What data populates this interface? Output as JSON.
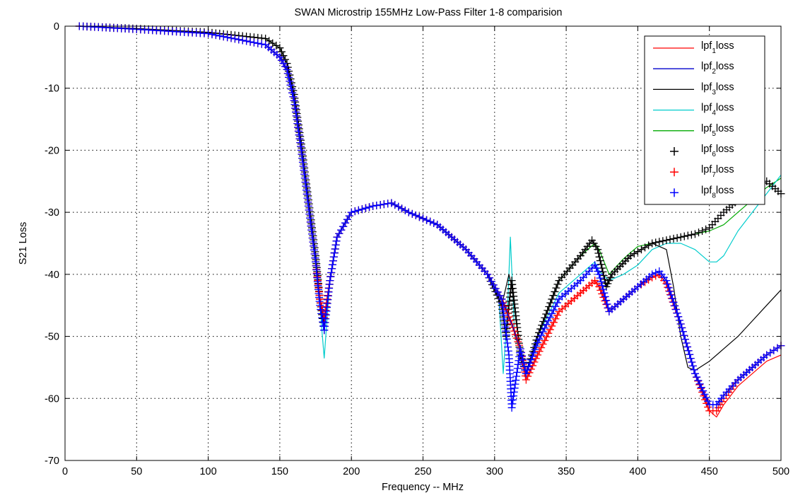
{
  "chart_data": {
    "type": "line",
    "title": "SWAN Microstrip 155MHz Low-Pass Filter 1-8 comparision",
    "xlabel": "Frequency -- MHz",
    "ylabel": "S21 Loss",
    "xlim": [
      0,
      500
    ],
    "ylim": [
      -70,
      0
    ],
    "xticks": [
      0,
      50,
      100,
      150,
      200,
      250,
      300,
      350,
      400,
      450,
      500
    ],
    "yticks": [
      0,
      -10,
      -20,
      -30,
      -40,
      -50,
      -60,
      -70
    ],
    "grid": true,
    "legend_position": "top-right",
    "series": [
      {
        "name": "lpf1loss",
        "base": "lpf",
        "sub": "1",
        "tail": "loss",
        "style": "line",
        "color": "#ff0000",
        "x": [
          10,
          50,
          100,
          140,
          150,
          155,
          160,
          165,
          170,
          175,
          178,
          181,
          185,
          190,
          200,
          215,
          228,
          240,
          260,
          280,
          295,
          305,
          312,
          318,
          322,
          330,
          345,
          360,
          370,
          373,
          380,
          390,
          400,
          410,
          415,
          420,
          430,
          440,
          450,
          455,
          460,
          470,
          480,
          490,
          500
        ],
        "y": [
          0,
          -0.5,
          -1.2,
          -3,
          -5,
          -7,
          -12,
          -20,
          -29,
          -38,
          -44,
          -47,
          -41,
          -34,
          -30,
          -29,
          -28.5,
          -30,
          -32,
          -36,
          -40,
          -44,
          -48,
          -52,
          -57,
          -53,
          -46,
          -43,
          -41,
          -42,
          -46,
          -44,
          -42,
          -40.5,
          -40,
          -41.5,
          -48,
          -56,
          -62,
          -63,
          -61,
          -58,
          -56,
          -54,
          -53
        ]
      },
      {
        "name": "lpf2loss",
        "base": "lpf",
        "sub": "2",
        "tail": "loss",
        "style": "line",
        "color": "#0000cc",
        "x": [
          10,
          50,
          100,
          140,
          150,
          155,
          160,
          165,
          170,
          175,
          178,
          181,
          185,
          190,
          200,
          215,
          228,
          240,
          260,
          280,
          295,
          305,
          312,
          318,
          322,
          330,
          345,
          360,
          370,
          373,
          380,
          390,
          400,
          410,
          415,
          420,
          430,
          440,
          450,
          455,
          460,
          470,
          480,
          490,
          500
        ],
        "y": [
          0,
          -0.5,
          -1.2,
          -3,
          -5,
          -7,
          -12,
          -20,
          -29,
          -38,
          -45,
          -49,
          -41,
          -34,
          -30,
          -29,
          -28.5,
          -30,
          -32,
          -36,
          -40,
          -44,
          -48,
          -52,
          -56,
          -51,
          -44,
          -41,
          -38.5,
          -40,
          -46,
          -44,
          -42,
          -40,
          -39.5,
          -41,
          -48,
          -56,
          -61,
          -61,
          -59.5,
          -57,
          -55,
          -53,
          -51.5
        ]
      },
      {
        "name": "lpf3loss",
        "base": "lpf",
        "sub": "3",
        "tail": "loss",
        "style": "line",
        "color": "#000000",
        "x": [
          10,
          50,
          100,
          140,
          150,
          155,
          160,
          165,
          170,
          175,
          178,
          181,
          185,
          190,
          200,
          215,
          228,
          240,
          260,
          280,
          295,
          305,
          310,
          312,
          318,
          322,
          330,
          345,
          360,
          368,
          372,
          378,
          382,
          395,
          410,
          420,
          425,
          430,
          435,
          440,
          450,
          460,
          470,
          480,
          490,
          500
        ],
        "y": [
          0,
          -0.4,
          -1,
          -2,
          -3.5,
          -6,
          -11,
          -19,
          -28,
          -37,
          -44,
          -48,
          -41,
          -34,
          -30,
          -29,
          -28.5,
          -30,
          -32,
          -36,
          -40,
          -45,
          -40,
          -42,
          -53,
          -56,
          -50,
          -41,
          -37,
          -34.5,
          -36,
          -42,
          -40,
          -37,
          -35,
          -36,
          -42,
          -50,
          -55,
          -55.5,
          -54,
          -52,
          -50,
          -47.5,
          -45,
          -42.5
        ]
      },
      {
        "name": "lpf4loss",
        "base": "lpf",
        "sub": "4",
        "tail": "loss",
        "style": "line",
        "color": "#00cccc",
        "x": [
          10,
          50,
          100,
          140,
          150,
          155,
          160,
          165,
          170,
          175,
          178,
          181,
          185,
          190,
          200,
          215,
          228,
          240,
          260,
          280,
          295,
          303,
          306,
          309,
          311,
          314,
          318,
          322,
          330,
          345,
          360,
          370,
          373,
          380,
          390,
          400,
          410,
          415,
          420,
          430,
          440,
          450,
          455,
          460,
          470,
          480,
          490,
          500
        ],
        "y": [
          0,
          -0.5,
          -1.2,
          -3,
          -5,
          -7,
          -12,
          -20,
          -29,
          -38,
          -45,
          -53.5,
          -41,
          -34,
          -30,
          -29,
          -28.5,
          -30,
          -32,
          -36,
          -40,
          -44,
          -56,
          -46,
          -34,
          -50,
          -52,
          -56,
          -50,
          -43,
          -40,
          -38,
          -39.5,
          -41,
          -40,
          -38.5,
          -36,
          -35.5,
          -35,
          -35,
          -36,
          -38,
          -38,
          -37,
          -33,
          -30,
          -27,
          -24
        ]
      },
      {
        "name": "lpf5loss",
        "base": "lpf",
        "sub": "5",
        "tail": "loss",
        "style": "line",
        "color": "#00aa00",
        "x": [
          10,
          50,
          100,
          140,
          150,
          155,
          160,
          165,
          170,
          175,
          178,
          181,
          185,
          190,
          200,
          215,
          228,
          240,
          260,
          280,
          295,
          305,
          312,
          318,
          322,
          330,
          345,
          360,
          370,
          373,
          380,
          390,
          400,
          410,
          420,
          430,
          440,
          450,
          460,
          470,
          480,
          490,
          500
        ],
        "y": [
          0,
          -0.4,
          -1,
          -2,
          -3.5,
          -6,
          -11,
          -19,
          -28,
          -37,
          -44,
          -48,
          -41,
          -34,
          -30,
          -29,
          -28.5,
          -30,
          -32,
          -36,
          -40,
          -44,
          -48,
          -52,
          -56,
          -50,
          -41,
          -37,
          -35,
          -36,
          -40,
          -37.5,
          -35.5,
          -35,
          -34.5,
          -34,
          -33.5,
          -33,
          -32,
          -30,
          -28,
          -26,
          -24.5
        ]
      },
      {
        "name": "lpf6loss",
        "base": "lpf",
        "sub": "6",
        "tail": "loss",
        "style": "marker",
        "color": "#000000",
        "x": [
          10,
          50,
          100,
          140,
          150,
          155,
          160,
          165,
          170,
          175,
          178,
          181,
          185,
          190,
          200,
          215,
          228,
          240,
          260,
          280,
          295,
          305,
          308,
          310,
          312,
          318,
          322,
          330,
          345,
          360,
          368,
          372,
          378,
          382,
          395,
          410,
          420,
          440,
          450,
          460,
          470,
          480,
          490,
          500
        ],
        "y": [
          0,
          -0.4,
          -1,
          -2,
          -3.5,
          -6,
          -11,
          -19,
          -28,
          -37,
          -44,
          -49,
          -41,
          -34,
          -30,
          -29,
          -28.5,
          -30,
          -32,
          -36,
          -40,
          -45,
          -50,
          -45,
          -41,
          -53,
          -56,
          -50,
          -41,
          -37,
          -34.5,
          -36,
          -42,
          -40,
          -37,
          -35,
          -34.5,
          -33.5,
          -32.5,
          -30,
          -28,
          -26,
          -25,
          -27
        ]
      },
      {
        "name": "lpf7loss",
        "base": "lpf",
        "sub": "7",
        "tail": "loss",
        "style": "marker",
        "color": "#ff0000",
        "x": [
          10,
          50,
          100,
          140,
          150,
          155,
          160,
          165,
          170,
          175,
          178,
          181,
          185,
          190,
          200,
          215,
          228,
          240,
          260,
          280,
          295,
          305,
          312,
          318,
          322,
          330,
          345,
          360,
          370,
          373,
          380,
          390,
          400,
          410,
          415,
          420,
          430,
          440,
          450,
          455,
          460,
          470,
          480,
          490,
          500
        ],
        "y": [
          0,
          -0.5,
          -1.2,
          -3,
          -5,
          -7,
          -12,
          -20,
          -29,
          -38,
          -44,
          -47,
          -41,
          -34,
          -30,
          -29,
          -28.5,
          -30,
          -32,
          -36,
          -40,
          -44,
          -48,
          -52,
          -57,
          -53,
          -46,
          -43,
          -41,
          -42,
          -46,
          -44,
          -42,
          -40.5,
          -40,
          -41.5,
          -48,
          -56,
          -62,
          -62,
          -60,
          -57,
          -55,
          -53,
          -51.5
        ]
      },
      {
        "name": "lpf8loss",
        "base": "lpf",
        "sub": "8",
        "tail": "loss",
        "style": "marker",
        "color": "#0000ff",
        "x": [
          10,
          50,
          100,
          140,
          150,
          155,
          160,
          165,
          170,
          175,
          178,
          181,
          185,
          190,
          200,
          215,
          228,
          240,
          260,
          280,
          295,
          305,
          310,
          312,
          318,
          322,
          330,
          345,
          360,
          370,
          373,
          380,
          390,
          400,
          410,
          415,
          420,
          430,
          440,
          450,
          455,
          460,
          470,
          480,
          490,
          500
        ],
        "y": [
          0,
          -0.5,
          -1.2,
          -3,
          -5,
          -7,
          -12,
          -20,
          -29,
          -38,
          -45,
          -49,
          -41,
          -34,
          -30,
          -29,
          -28.5,
          -30,
          -32,
          -36,
          -40,
          -44,
          -53,
          -61.5,
          -52,
          -56,
          -51,
          -44,
          -41,
          -38.5,
          -40,
          -46,
          -44,
          -42,
          -40,
          -39.5,
          -41,
          -48,
          -56,
          -61,
          -61,
          -59.5,
          -57,
          -55,
          -53,
          -51.5
        ]
      }
    ]
  }
}
